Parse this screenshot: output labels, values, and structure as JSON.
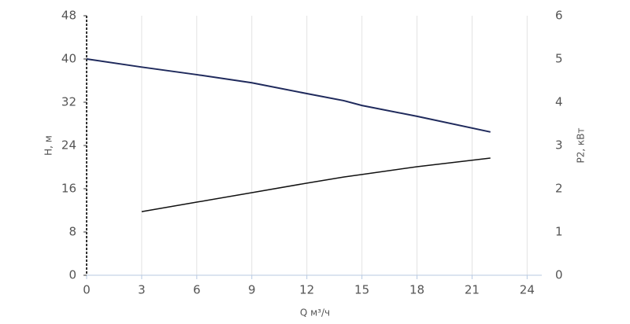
{
  "chart_data": {
    "type": "line",
    "x_label": "Q м³/ч",
    "y_label": "H, м",
    "y2_label": "P2, кВт",
    "x": [
      0,
      3,
      6,
      9,
      12,
      14,
      15,
      18,
      22
    ],
    "series": [
      {
        "color": "#1f2a5c",
        "values": [
          40,
          38.5,
          37.1,
          35.6,
          33.6,
          32.3,
          31.4,
          29.4,
          26.5
        ]
      },
      {
        "color": "#111111",
        "axis": "y2",
        "values": [
          null,
          1.47,
          1.69,
          1.91,
          2.13,
          2.27,
          2.33,
          2.51,
          2.71
        ]
      }
    ],
    "xlim": [
      0,
      24.8
    ],
    "xticks": [
      0,
      3,
      6,
      9,
      12,
      15,
      18,
      21,
      24
    ],
    "ylim": [
      0,
      48
    ],
    "yticks": [
      0,
      8,
      16,
      24,
      32,
      40,
      48
    ],
    "y2lim": [
      0,
      6
    ],
    "y2ticks": [
      0,
      1,
      2,
      3,
      4,
      5,
      6
    ],
    "grid": true
  }
}
